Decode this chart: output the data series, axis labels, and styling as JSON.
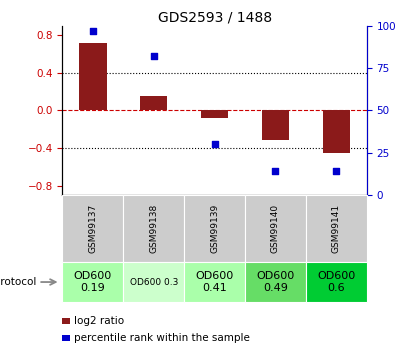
{
  "title": "GDS2593 / 1488",
  "samples": [
    "GSM99137",
    "GSM99138",
    "GSM99139",
    "GSM99140",
    "GSM99141"
  ],
  "log2_ratio": [
    0.72,
    0.15,
    -0.08,
    -0.32,
    -0.45
  ],
  "percentile_rank": [
    97,
    82,
    30,
    14,
    14
  ],
  "bar_color": "#8B1A1A",
  "dot_color": "#0000CD",
  "ylim_left": [
    -0.9,
    0.9
  ],
  "ylim_right": [
    0,
    100
  ],
  "yticks_left": [
    -0.8,
    -0.4,
    0.0,
    0.4,
    0.8
  ],
  "yticks_right": [
    0,
    25,
    50,
    75,
    100
  ],
  "dotted_lines": [
    -0.4,
    0.4
  ],
  "protocol_labels": [
    "OD600\n0.19",
    "OD600 0.3",
    "OD600\n0.41",
    "OD600\n0.49",
    "OD600\n0.6"
  ],
  "protocol_colors": [
    "#aaffaa",
    "#ccffcc",
    "#aaffaa",
    "#66dd66",
    "#00cc33"
  ],
  "protocol_font_sizes": [
    8,
    6.5,
    8,
    8,
    8
  ],
  "legend_red_label": "log2 ratio",
  "legend_blue_label": "percentile rank within the sample",
  "left_tick_color": "#cc0000",
  "right_tick_color": "#0000CD"
}
